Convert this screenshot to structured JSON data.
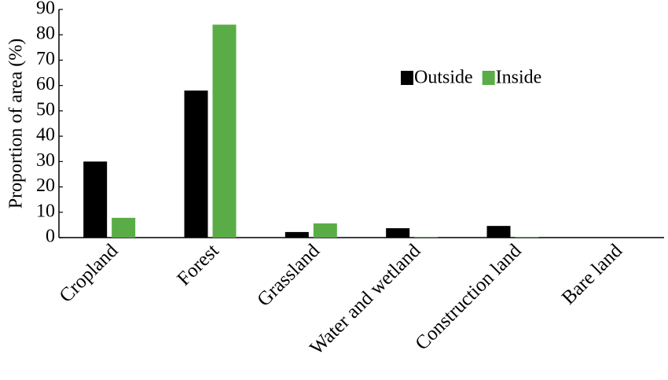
{
  "chart_data": {
    "type": "bar",
    "ylabel": "Proportion of area (%)",
    "categories": [
      "Cropland",
      "Forest",
      "Grassland",
      "Water and wetland",
      "Construction land",
      "Bare land"
    ],
    "series": [
      {
        "name": "Outside",
        "color": "#000000",
        "values": [
          30,
          58,
          2.2,
          3.7,
          4.6,
          0
        ]
      },
      {
        "name": "Inside",
        "color": "#5aad46",
        "values": [
          7.8,
          84,
          5.6,
          0.3,
          0.3,
          0
        ]
      }
    ],
    "ylim": [
      0,
      90
    ],
    "yticks": [
      0,
      10,
      20,
      30,
      40,
      50,
      60,
      70,
      80,
      90
    ],
    "legend": "upper right"
  }
}
